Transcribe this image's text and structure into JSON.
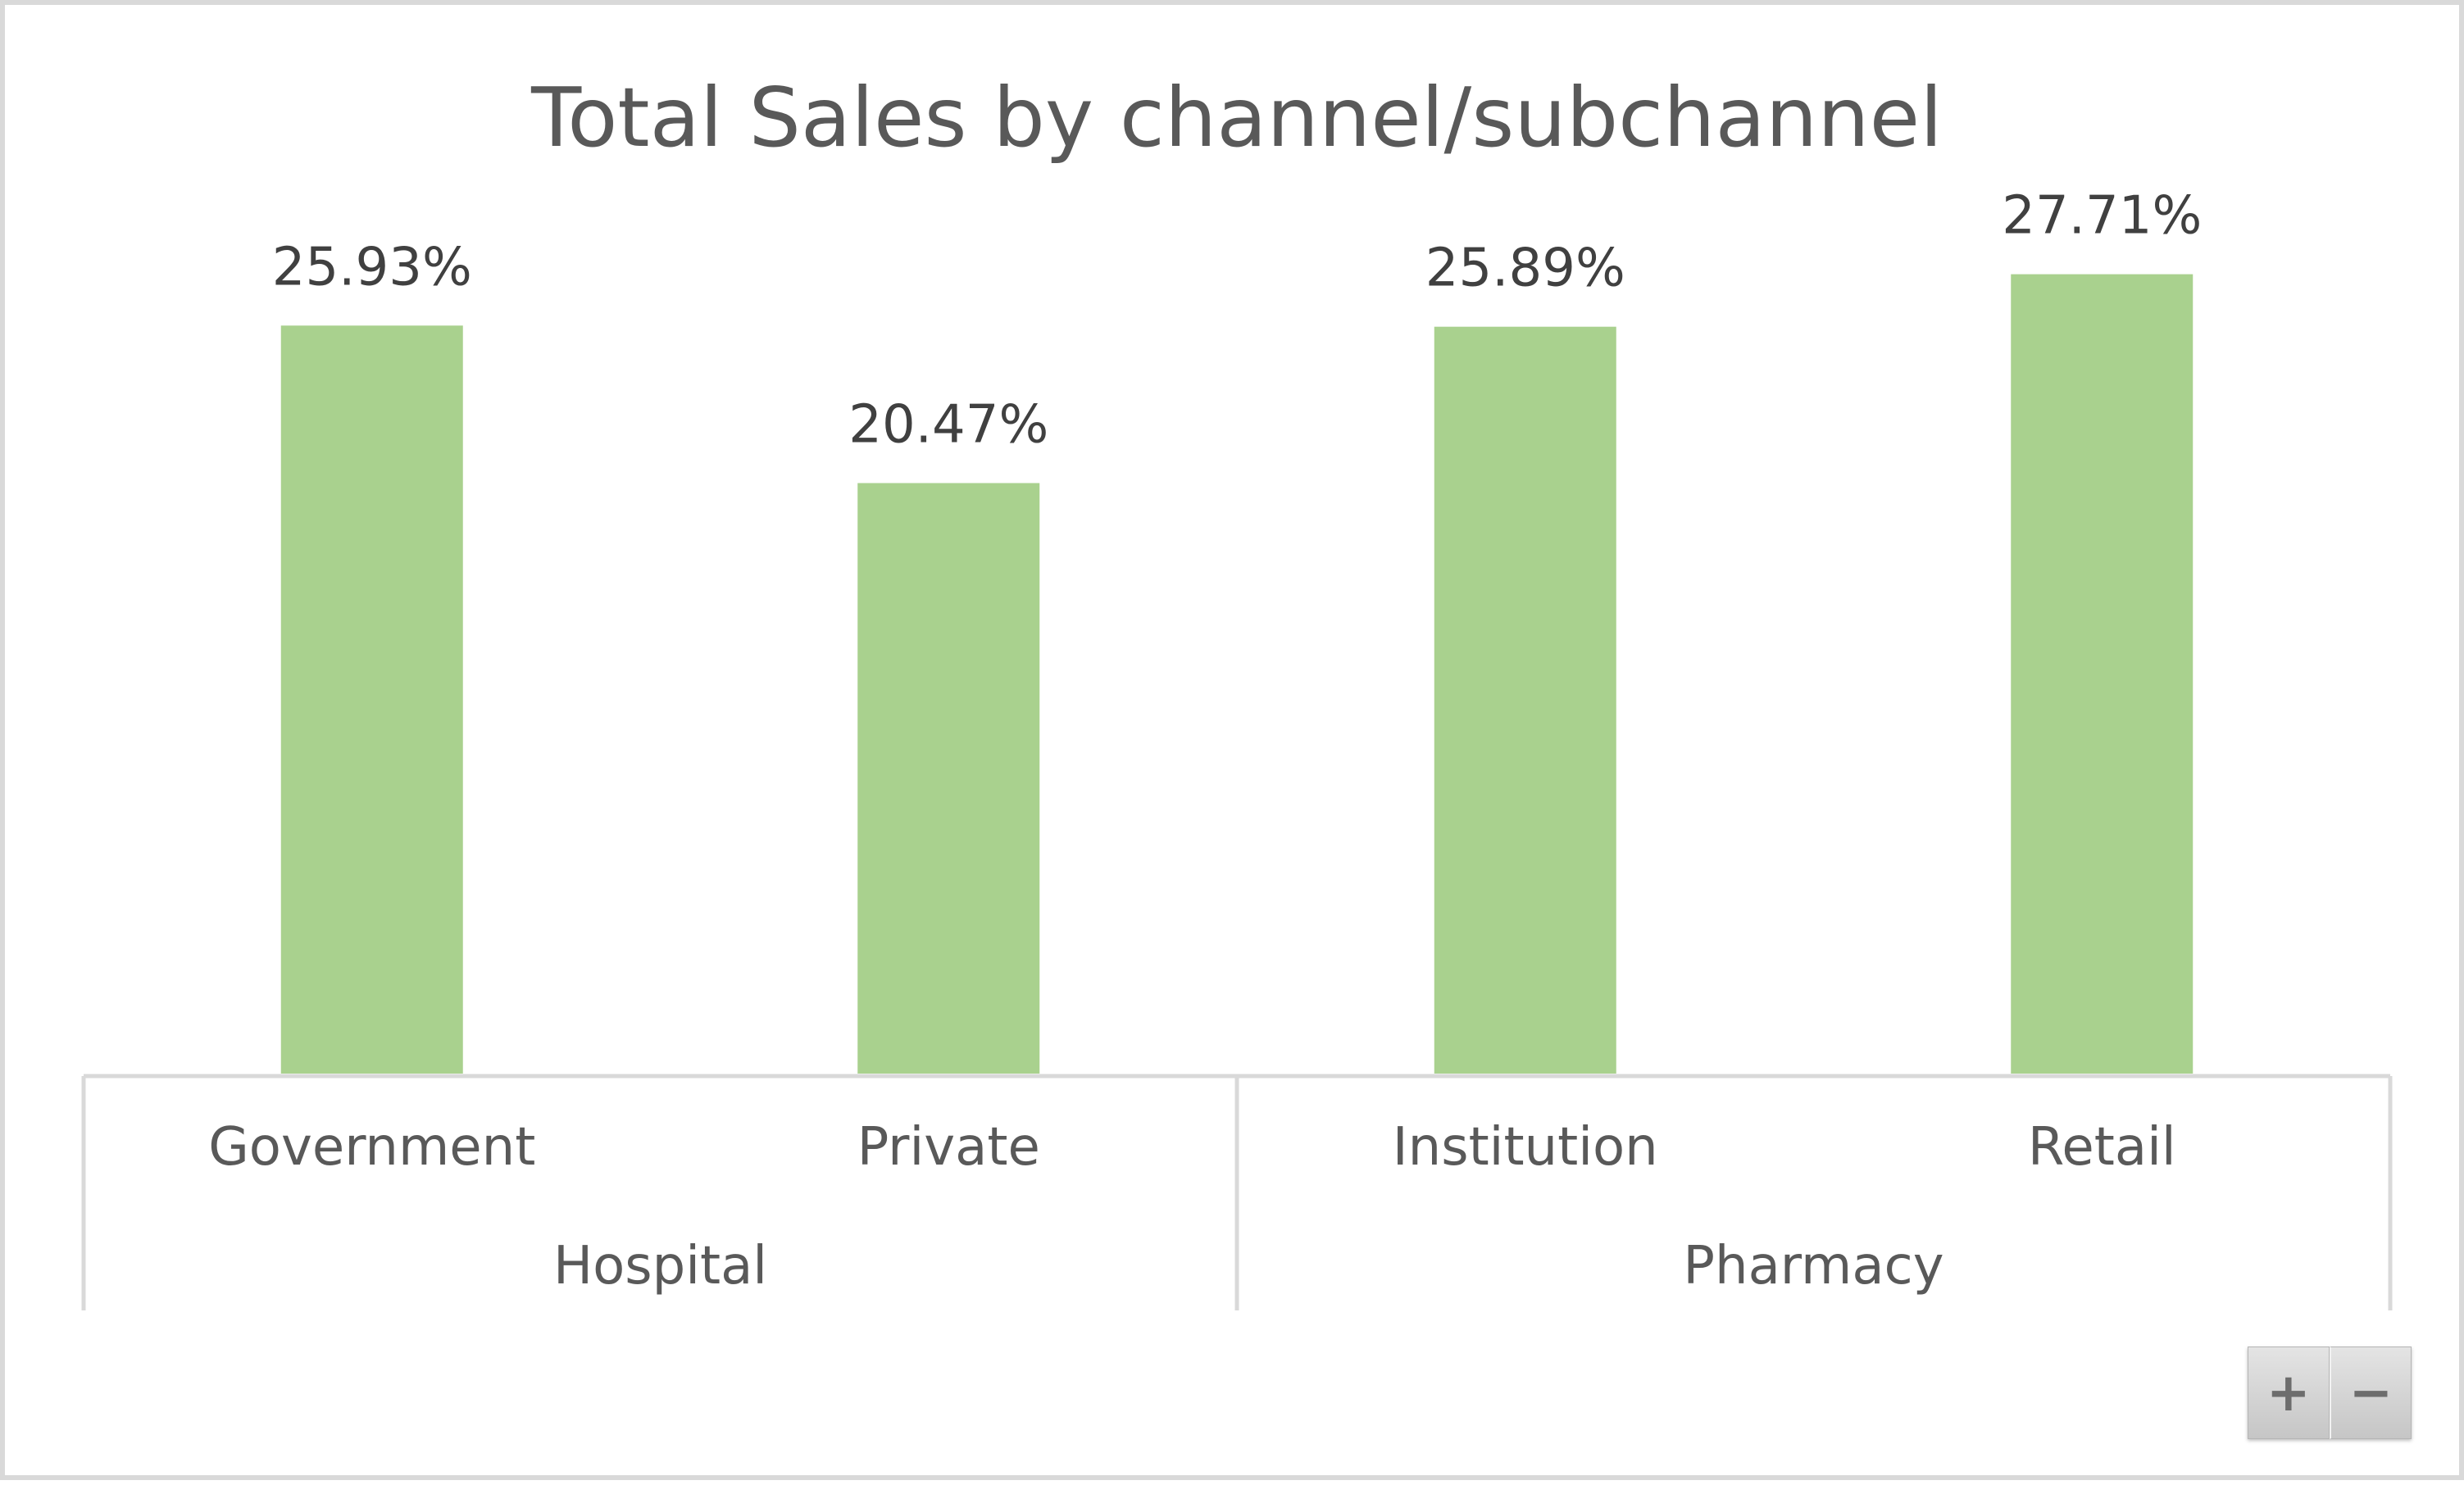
{
  "chart_data": {
    "type": "bar",
    "title": "Total Sales by channel/subchannel",
    "categories": [
      "Government",
      "Private",
      "Institution",
      "Retail"
    ],
    "groups": [
      {
        "name": "Hospital",
        "categories": [
          "Government",
          "Private"
        ]
      },
      {
        "name": "Pharmacy",
        "categories": [
          "Institution",
          "Retail"
        ]
      }
    ],
    "series": [
      {
        "values": [
          25.93,
          20.47,
          25.89,
          27.71
        ],
        "labels": [
          "25.93%",
          "20.47%",
          "25.89%",
          "27.71%"
        ]
      }
    ],
    "ylim": [
      0,
      30
    ],
    "grid": false,
    "legend": "none",
    "xlabel": "",
    "ylabel": ""
  },
  "colors": {
    "bar": "#a9d18e",
    "title": "#595959",
    "data_label": "#404040",
    "axis_label": "#595959",
    "axis_line": "#d9d9d9"
  },
  "zoom_controls": {
    "zoom_in_label": "+",
    "zoom_out_label": "−",
    "zoom_in_icon": "plus-icon",
    "zoom_out_icon": "minus-icon"
  }
}
